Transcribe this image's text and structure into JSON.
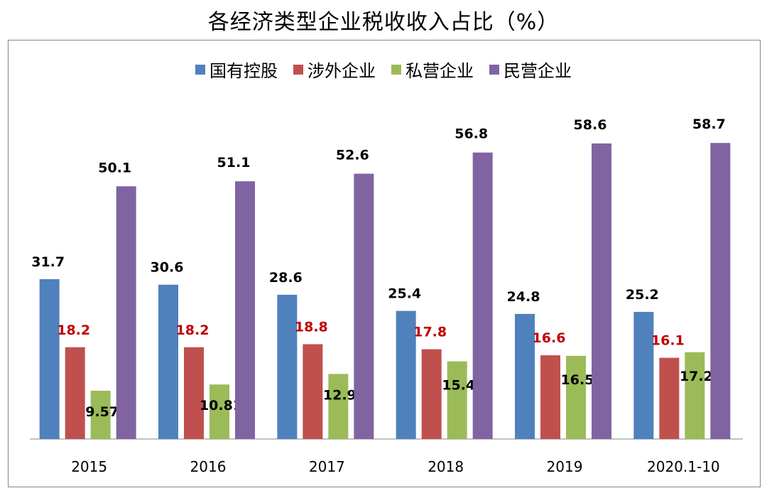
{
  "title": "各经济类型企业税收收入占比（%）",
  "chart_data": {
    "type": "bar",
    "title": "各经济类型企业税收收入占比（%）",
    "categories": [
      "2015",
      "2016",
      "2017",
      "2018",
      "2019",
      "2020.1-10"
    ],
    "ylim": [
      0,
      70
    ],
    "grid": false,
    "legend_position": "top",
    "series": [
      {
        "name": "国有控股",
        "color": "#4F81BD",
        "label_color": "#000000",
        "values": [
          31.7,
          30.6,
          28.6,
          25.4,
          24.8,
          25.2
        ],
        "labels": [
          "31.7",
          "30.6",
          "28.6",
          "25.4",
          "24.8",
          "25.2"
        ]
      },
      {
        "name": "涉外企业",
        "color": "#C0504D",
        "label_color": "#C00000",
        "values": [
          18.2,
          18.2,
          18.8,
          17.8,
          16.6,
          16.1
        ],
        "labels": [
          "18.2",
          "18.2",
          "18.8",
          "17.8",
          "16.6",
          "16.1"
        ]
      },
      {
        "name": "私营企业",
        "color": "#9BBB59",
        "label_color": "#000000",
        "values": [
          9.57,
          10.81,
          12.9,
          15.4,
          16.5,
          17.2
        ],
        "labels": [
          "9.57",
          "10.81",
          "12.9",
          "15.4",
          "16.5",
          "17.2"
        ]
      },
      {
        "name": "民营企业",
        "color": "#8064A2",
        "label_color": "#000000",
        "values": [
          50.1,
          51.1,
          52.6,
          56.8,
          58.6,
          58.7
        ],
        "labels": [
          "50.1",
          "51.1",
          "52.6",
          "56.8",
          "58.6",
          "58.7"
        ]
      }
    ]
  }
}
